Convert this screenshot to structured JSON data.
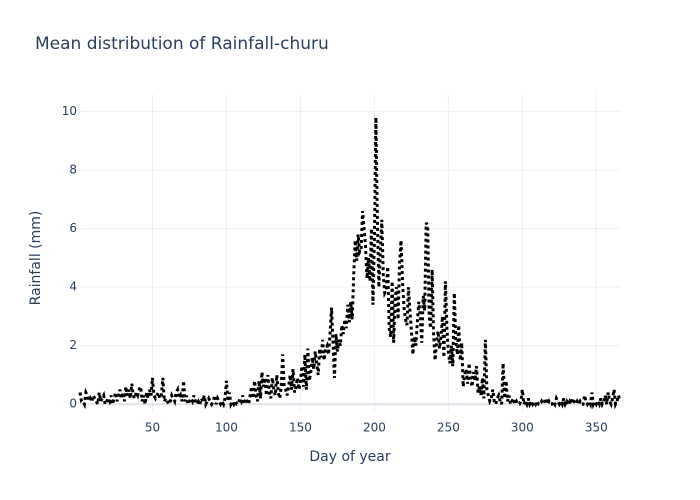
{
  "chart_data": {
    "type": "line",
    "title": "Mean distribution of Rainfall-churu",
    "x_label": "Day of year",
    "y_label": "Rainfall (mm)",
    "xlim": [
      1,
      366
    ],
    "ylim": [
      -0.3,
      10.6
    ],
    "xticks": [
      50,
      100,
      150,
      200,
      250,
      300,
      350
    ],
    "yticks": [
      0,
      2,
      4,
      6,
      8,
      10
    ],
    "grid": true,
    "x": [
      1,
      2,
      3,
      4,
      5,
      6,
      7,
      8,
      9,
      10,
      11,
      12,
      13,
      14,
      15,
      16,
      17,
      18,
      19,
      20,
      21,
      22,
      23,
      24,
      25,
      26,
      27,
      28,
      29,
      30,
      31,
      32,
      33,
      34,
      35,
      36,
      37,
      38,
      39,
      40,
      41,
      42,
      43,
      44,
      45,
      46,
      47,
      48,
      49,
      50,
      51,
      52,
      53,
      54,
      55,
      56,
      57,
      58,
      59,
      60,
      61,
      62,
      63,
      64,
      65,
      66,
      67,
      68,
      69,
      70,
      71,
      72,
      73,
      74,
      75,
      76,
      77,
      78,
      79,
      80,
      81,
      82,
      83,
      84,
      85,
      86,
      87,
      88,
      89,
      90,
      91,
      92,
      93,
      94,
      95,
      96,
      97,
      98,
      99,
      100,
      101,
      102,
      103,
      104,
      105,
      106,
      107,
      108,
      109,
      110,
      111,
      112,
      113,
      114,
      115,
      116,
      117,
      118,
      119,
      120,
      121,
      122,
      123,
      124,
      125,
      126,
      127,
      128,
      129,
      130,
      131,
      132,
      133,
      134,
      135,
      136,
      137,
      138,
      139,
      140,
      141,
      142,
      143,
      144,
      145,
      146,
      147,
      148,
      149,
      150,
      151,
      152,
      153,
      154,
      155,
      156,
      157,
      158,
      159,
      160,
      161,
      162,
      163,
      164,
      165,
      166,
      167,
      168,
      169,
      170,
      171,
      172,
      173,
      174,
      175,
      176,
      177,
      178,
      179,
      180,
      181,
      182,
      183,
      184,
      185,
      186,
      187,
      188,
      189,
      190,
      191,
      192,
      193,
      194,
      195,
      196,
      197,
      198,
      199,
      200,
      201,
      202,
      203,
      204,
      205,
      206,
      207,
      208,
      209,
      210,
      211,
      212,
      213,
      214,
      215,
      216,
      217,
      218,
      219,
      220,
      221,
      222,
      223,
      224,
      225,
      226,
      227,
      228,
      229,
      230,
      231,
      232,
      233,
      234,
      235,
      236,
      237,
      238,
      239,
      240,
      241,
      242,
      243,
      244,
      245,
      246,
      247,
      248,
      249,
      250,
      251,
      252,
      253,
      254,
      255,
      256,
      257,
      258,
      259,
      260,
      261,
      262,
      263,
      264,
      265,
      266,
      267,
      268,
      269,
      270,
      271,
      272,
      273,
      274,
      275,
      276,
      277,
      278,
      279,
      280,
      281,
      282,
      283,
      284,
      285,
      286,
      287,
      288,
      289,
      290,
      291,
      292,
      293,
      294,
      295,
      296,
      297,
      298,
      299,
      300,
      301,
      302,
      303,
      304,
      305,
      306,
      307,
      308,
      309,
      310,
      311,
      312,
      313,
      314,
      315,
      316,
      317,
      318,
      319,
      320,
      321,
      322,
      323,
      324,
      325,
      326,
      327,
      328,
      329,
      330,
      331,
      332,
      333,
      334,
      335,
      336,
      337,
      338,
      339,
      340,
      341,
      342,
      343,
      344,
      345,
      346,
      347,
      348,
      349,
      350,
      351,
      352,
      353,
      354,
      355,
      356,
      357,
      358,
      359,
      360,
      361,
      362,
      363,
      364,
      365,
      366
    ],
    "series": [
      {
        "color": "#000000",
        "values": [
          0.4,
          0.1,
          0.1,
          0.0,
          0.4,
          0.3,
          0.1,
          0.2,
          0.1,
          0.3,
          0.2,
          0.1,
          0.0,
          0.4,
          0.1,
          0.2,
          0.3,
          0.0,
          0.1,
          0.2,
          0.1,
          0.3,
          0.0,
          0.2,
          0.4,
          0.1,
          0.3,
          0.5,
          0.2,
          0.4,
          0.1,
          0.6,
          0.3,
          0.5,
          0.2,
          0.7,
          0.3,
          0.2,
          0.4,
          0.3,
          0.5,
          0.6,
          0.1,
          0.3,
          0.0,
          0.4,
          0.2,
          0.5,
          0.3,
          0.9,
          0.3,
          0.2,
          0.3,
          0.4,
          0.2,
          0.3,
          0.9,
          0.1,
          0.2,
          0.1,
          0.0,
          0.1,
          0.3,
          0.2,
          0.1,
          0.4,
          0.5,
          0.2,
          0.3,
          0.1,
          0.8,
          0.1,
          0.3,
          0.0,
          0.1,
          0.2,
          0.1,
          0.3,
          0.1,
          0.0,
          0.1,
          0.0,
          0.2,
          0.1,
          0.3,
          0.0,
          0.1,
          0.2,
          0.1,
          0.0,
          0.1,
          0.3,
          0.0,
          0.2,
          0.1,
          0.0,
          0.1,
          0.0,
          0.2,
          0.8,
          0.1,
          0.4,
          0.0,
          0.1,
          0.0,
          0.1,
          0.0,
          0.0,
          0.2,
          0.1,
          0.3,
          0.0,
          0.2,
          0.1,
          0.0,
          0.3,
          0.6,
          0.2,
          0.8,
          0.3,
          0.1,
          0.8,
          0.2,
          1.1,
          0.6,
          0.9,
          0.3,
          1.0,
          0.4,
          0.2,
          0.9,
          0.5,
          0.3,
          1.0,
          0.4,
          0.2,
          0.6,
          1.7,
          0.6,
          0.5,
          0.3,
          0.6,
          1.0,
          0.5,
          1.2,
          0.4,
          0.6,
          0.9,
          0.5,
          0.8,
          1.3,
          0.6,
          1.7,
          0.5,
          1.9,
          0.8,
          1.1,
          1.6,
          1.2,
          1.8,
          1.4,
          1.0,
          1.9,
          1.6,
          2.2,
          1.5,
          1.9,
          2.0,
          1.7,
          2.4,
          3.3,
          2.1,
          0.9,
          2.4,
          1.8,
          2.2,
          2.0,
          2.7,
          2.4,
          2.9,
          2.6,
          3.4,
          2.8,
          3.5,
          2.9,
          4.4,
          5.6,
          4.9,
          5.8,
          5.2,
          5.3,
          6.6,
          6.0,
          5.4,
          4.3,
          5.0,
          4.2,
          6.0,
          3.4,
          5.6,
          9.8,
          6.3,
          4.0,
          5.2,
          6.3,
          4.4,
          3.8,
          3.9,
          4.7,
          2.6,
          2.3,
          4.2,
          2.1,
          3.6,
          4.0,
          2.9,
          4.8,
          5.6,
          4.2,
          3.3,
          2.9,
          2.7,
          4.0,
          3.2,
          2.5,
          1.7,
          2.3,
          2.0,
          2.8,
          3.5,
          3.0,
          2.1,
          3.7,
          3.2,
          6.2,
          6.1,
          3.0,
          2.6,
          4.6,
          2.4,
          1.5,
          2.1,
          2.5,
          1.9,
          2.3,
          3.0,
          1.6,
          4.2,
          2.6,
          1.8,
          1.4,
          2.0,
          1.3,
          3.8,
          2.2,
          1.7,
          2.7,
          1.5,
          2.1,
          0.6,
          1.0,
          1.2,
          0.7,
          1.4,
          0.9,
          0.6,
          1.1,
          0.8,
          1.3,
          0.4,
          0.6,
          0.3,
          0.9,
          0.2,
          2.2,
          0.5,
          0.3,
          0.1,
          0.2,
          0.5,
          0.1,
          0.0,
          0.2,
          0.3,
          0.1,
          0.0,
          1.4,
          0.2,
          0.8,
          0.1,
          0.3,
          0.0,
          0.1,
          0.2,
          0.0,
          0.1,
          0.0,
          0.0,
          0.1,
          0.5,
          0.0,
          0.1,
          0.0,
          0.2,
          0.0,
          0.1,
          0.0,
          0.1,
          0.0,
          0.1,
          0.0,
          0.0,
          0.1,
          0.0,
          0.1,
          0.2,
          0.0,
          0.1,
          0.0,
          0.0,
          0.1,
          0.0,
          0.2,
          0.1,
          0.0,
          0.1,
          0.0,
          0.2,
          0.0,
          0.1,
          0.0,
          0.1,
          0.0,
          0.2,
          0.1,
          0.0,
          0.1,
          0.0,
          0.1,
          0.0,
          0.0,
          0.3,
          0.1,
          0.0,
          0.1,
          0.0,
          0.4,
          0.0,
          0.1,
          0.0,
          0.1,
          0.0,
          0.2,
          0.0,
          0.1,
          0.3,
          0.0,
          0.4,
          0.1,
          0.0,
          0.2,
          0.5,
          0.0,
          0.1,
          0.3,
          0.1
        ]
      }
    ]
  }
}
